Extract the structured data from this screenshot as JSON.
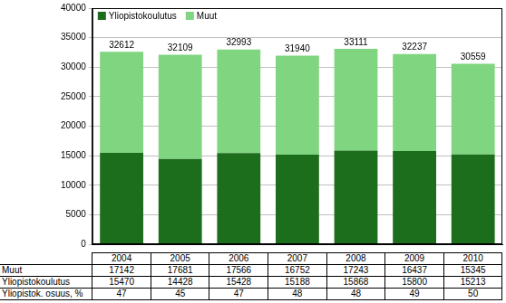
{
  "chart_data": {
    "type": "bar",
    "stacked": true,
    "categories": [
      "2004",
      "2005",
      "2006",
      "2007",
      "2008",
      "2009",
      "2010"
    ],
    "series": [
      {
        "name": "Yliopistokoulutus",
        "color": "#1c6d1c",
        "values": [
          15470,
          14428,
          15428,
          15188,
          15868,
          15800,
          15213
        ]
      },
      {
        "name": "Muut",
        "color": "#80d580",
        "values": [
          17142,
          17681,
          17566,
          16752,
          17243,
          16437,
          15345
        ]
      }
    ],
    "totals": [
      32612,
      32109,
      32993,
      31940,
      33111,
      32237,
      30559
    ],
    "shares": {
      "name": "Yliopistok. osuus, %",
      "values": [
        47,
        45,
        47,
        48,
        48,
        49,
        50
      ]
    },
    "ylim": [
      0,
      40000
    ],
    "yticks": [
      0,
      5000,
      10000,
      15000,
      20000,
      25000,
      30000,
      35000,
      40000
    ],
    "grid": true,
    "legend": "upper left"
  }
}
